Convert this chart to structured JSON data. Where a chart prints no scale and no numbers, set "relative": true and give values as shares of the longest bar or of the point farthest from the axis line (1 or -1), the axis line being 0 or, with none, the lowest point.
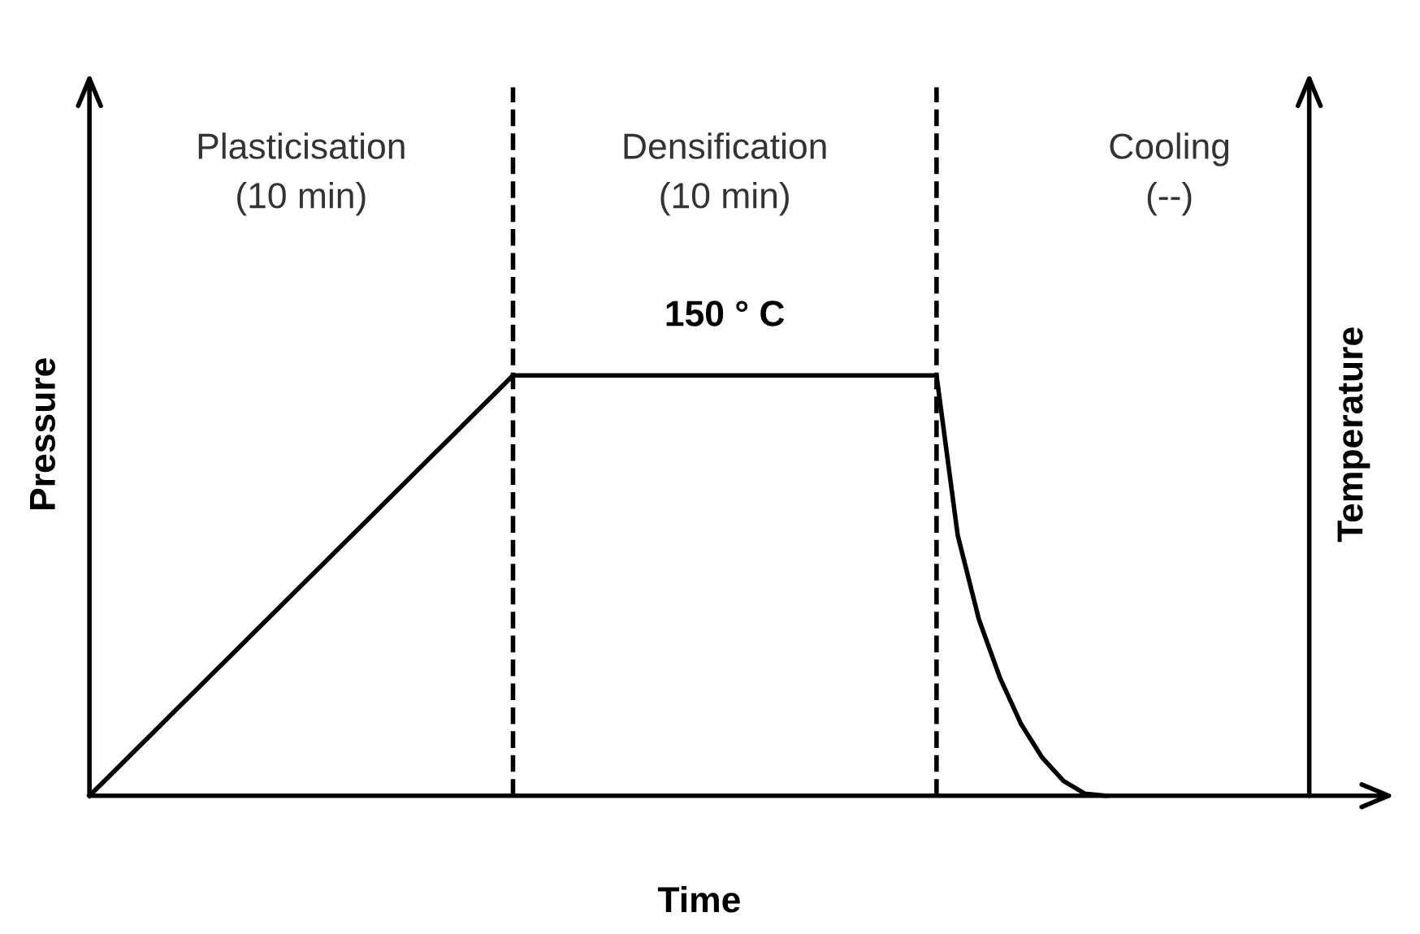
{
  "chart_data": {
    "type": "line",
    "relative": true,
    "xlabel": "Time",
    "ylabel": "Pressure",
    "y2label": "Temperature",
    "tick_labels": false,
    "marker": "none",
    "line_style": "solid",
    "categories": [
      null,
      null,
      null,
      null,
      null,
      null,
      null,
      null,
      null,
      null,
      null,
      null,
      null,
      null,
      null,
      null,
      null,
      null,
      null,
      null,
      null,
      null,
      null,
      null,
      null,
      null,
      null,
      null,
      null,
      null,
      null,
      null,
      null,
      null,
      null,
      null,
      null,
      null,
      null,
      null,
      null,
      null,
      null,
      null,
      null,
      null,
      null,
      null,
      null,
      null,
      null,
      null,
      null,
      null,
      null,
      null,
      null,
      null
    ],
    "series": [
      {
        "color": "#000000",
        "values": [
          0,
          0.05,
          0.1,
          0.15,
          0.2,
          0.25,
          0.3,
          0.35,
          0.4,
          0.45,
          0.5,
          0.55,
          0.6,
          0.65,
          0.7,
          0.75,
          0.8,
          0.85,
          0.9,
          0.95,
          1,
          1,
          1,
          1,
          1,
          1,
          1,
          1,
          1,
          1,
          1,
          1,
          1,
          1,
          1,
          1,
          1,
          1,
          1,
          1,
          1,
          0.62,
          0.42,
          0.28,
          0.17,
          0.09,
          0.035,
          0.005,
          0,
          null,
          null,
          null,
          null,
          null,
          null,
          null,
          null,
          null
        ]
      }
    ],
    "annotations": [
      "Plasticisation\n(10 min)",
      "Densification\n(10 min)",
      "Cooling\n(--)",
      "150 ° C"
    ]
  }
}
